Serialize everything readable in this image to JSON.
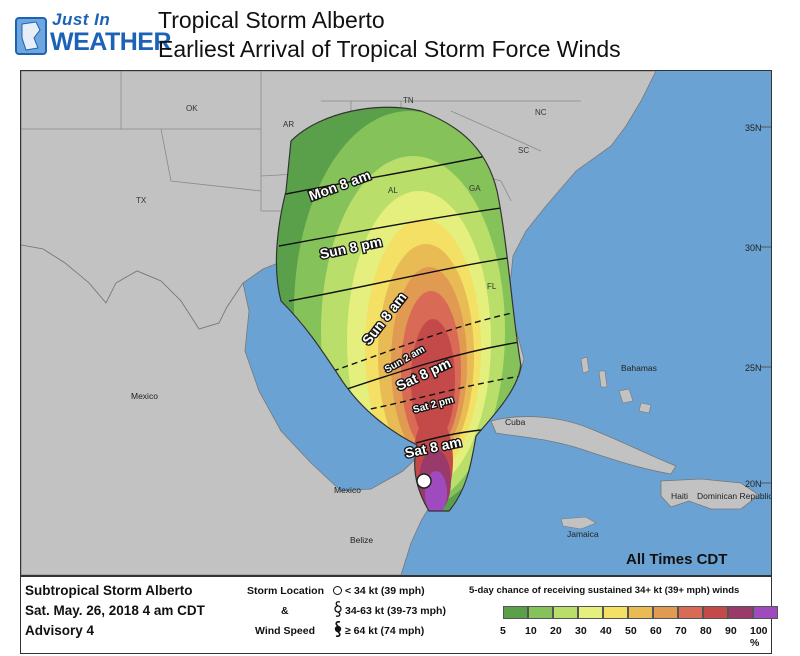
{
  "header": {
    "logo_line1": "Just In",
    "logo_line2": "WEATHER",
    "title_line1": "Tropical Storm Alberto",
    "title_line2": "Earliest Arrival of Tropical Storm Force Winds"
  },
  "map": {
    "states": [
      "OK",
      "AR",
      "TN",
      "NC",
      "SC",
      "TX",
      "AL",
      "GA",
      "FL"
    ],
    "countries": [
      "Mexico",
      "Cuba",
      "Bahamas",
      "Jamaica",
      "Belize",
      "Haiti",
      "Dominican Republic"
    ],
    "lat_labels": [
      "35N",
      "30N",
      "25N",
      "20N"
    ],
    "arrival_times": [
      "Mon 8 am",
      "Sun 8 pm",
      "Sun 8 am",
      "Sun 2 am",
      "Sat 8 pm",
      "Sat 2 pm",
      "Sat 8 am"
    ],
    "time_zone_note": "All Times CDT"
  },
  "legend": {
    "storm_name": "Subtropical Storm Alberto",
    "date": "Sat. May. 26, 2018  4 am CDT",
    "advisory": "Advisory 4",
    "storm_location_label": "Storm Location",
    "amp": "&",
    "wind_speed_label": "Wind Speed",
    "symbol_1": "< 34 kt (39 mph)",
    "symbol_2": "34-63 kt (39-73 mph)",
    "symbol_3": "≥ 64 kt (74 mph)",
    "probability_title": "5-day chance of receiving sustained 34+ kt (39+ mph) winds",
    "scale_values": [
      "5",
      "10",
      "20",
      "30",
      "40",
      "50",
      "60",
      "70",
      "80",
      "90",
      "100 %"
    ],
    "scale_colors": [
      "#5aa04a",
      "#86c25a",
      "#b9de6a",
      "#e4ef7e",
      "#f3e064",
      "#e8bb55",
      "#e09a52",
      "#d86a56",
      "#c44a4a",
      "#9a3a6a",
      "#a04ac0"
    ]
  },
  "colors": {
    "water": "#6aa3d3",
    "land": "#c2c2c2"
  }
}
